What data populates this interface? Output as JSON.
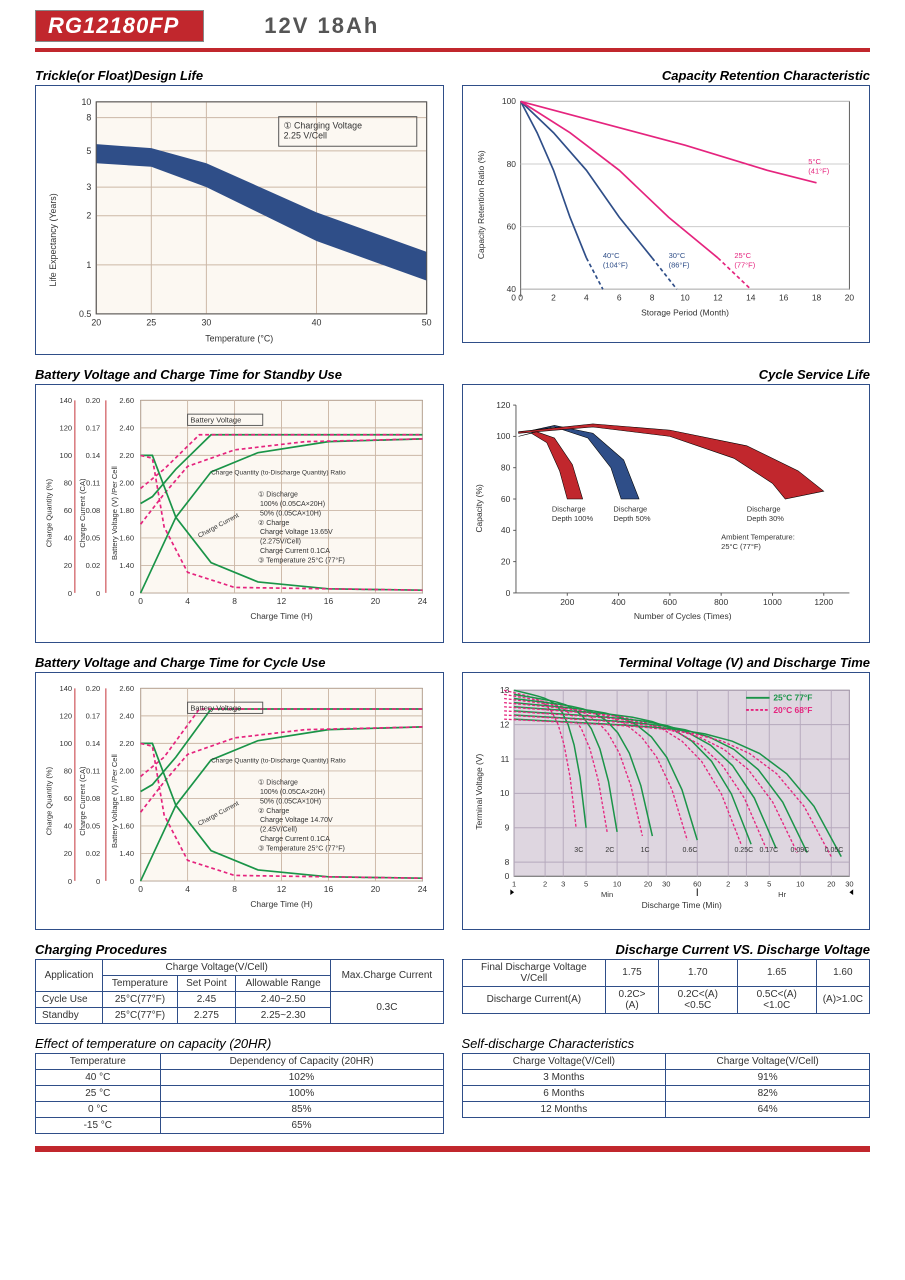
{
  "header": {
    "model": "RG12180FP",
    "rating": "12V  18Ah"
  },
  "charts": {
    "trickle": {
      "title": "Trickle(or Float)Design Life",
      "xlabel": "Temperature (°C)",
      "ylabel": "Life  Expectancy (Years)",
      "xticks": [
        20,
        25,
        30,
        40,
        50
      ],
      "yticks": [
        "0.5",
        "1",
        "2",
        "3",
        "5",
        "8",
        "10"
      ],
      "ytick_vals": [
        0.5,
        1,
        2,
        3,
        5,
        8,
        10
      ],
      "legend": "① Charging Voltage\n2.25 V/Cell",
      "band_top": [
        [
          20,
          5.5
        ],
        [
          25,
          5.2
        ],
        [
          30,
          4.2
        ],
        [
          40,
          2.1
        ],
        [
          50,
          1.2
        ]
      ],
      "band_bot": [
        [
          20,
          4.2
        ],
        [
          25,
          4.0
        ],
        [
          30,
          3.0
        ],
        [
          40,
          1.4
        ],
        [
          50,
          0.8
        ]
      ],
      "band_color": "#2f4e88",
      "grid_color": "#cbb7a6",
      "bg_color": "#fcf8f2"
    },
    "retention": {
      "title": "Capacity Retention Characteristic",
      "xlabel": "Storage Period (Month)",
      "ylabel": "Capacity Retention Ratio (%)",
      "xticks": [
        0,
        2,
        4,
        6,
        8,
        10,
        12,
        14,
        16,
        18,
        20
      ],
      "yticks": [
        40,
        60,
        80,
        100
      ],
      "series": {
        "40C": {
          "color": "#2f4e88",
          "dash": false,
          "pts": [
            [
              0,
              100
            ],
            [
              1,
              90
            ],
            [
              2,
              78
            ],
            [
              3,
              63
            ],
            [
              4,
              50
            ]
          ],
          "dashpts": [
            [
              4,
              50
            ],
            [
              5,
              40
            ]
          ],
          "label": "40°C\n(104°F)",
          "lx": 5,
          "ly": 50
        },
        "30C": {
          "color": "#2f4e88",
          "dash": false,
          "pts": [
            [
              0,
              100
            ],
            [
              2,
              90
            ],
            [
              4,
              78
            ],
            [
              6,
              63
            ],
            [
              8,
              50
            ]
          ],
          "dashpts": [
            [
              8,
              50
            ],
            [
              9.5,
              40
            ]
          ],
          "label": "30°C\n(86°F)",
          "lx": 9,
          "ly": 50
        },
        "25C": {
          "color": "#e5247e",
          "dash": false,
          "pts": [
            [
              0,
              100
            ],
            [
              3,
              90
            ],
            [
              6,
              78
            ],
            [
              9,
              63
            ],
            [
              12,
              50
            ]
          ],
          "dashpts": [
            [
              12,
              50
            ],
            [
              14,
              40
            ]
          ],
          "label": "25°C\n(77°F)",
          "lx": 13,
          "ly": 50
        },
        "5C": {
          "color": "#e5247e",
          "dash": false,
          "pts": [
            [
              0,
              100
            ],
            [
              5,
              93
            ],
            [
              10,
              86
            ],
            [
              15,
              78
            ],
            [
              18,
              74
            ]
          ],
          "dashpts": [],
          "label": "5°C\n(41°F)",
          "lx": 17.5,
          "ly": 80
        }
      },
      "grid_color": "#cccccc"
    },
    "standby": {
      "title": "Battery Voltage and Charge Time for Standby Use",
      "xlabel": "Charge Time (H)",
      "ylabel1": "Charge Quantity (%)",
      "ylabel2": "Charge Current (CA)",
      "ylabel3": "Battery Voltage (V) /Per Cell",
      "xticks": [
        0,
        4,
        8,
        12,
        16,
        20,
        24
      ],
      "y1ticks": [
        0,
        20,
        40,
        60,
        80,
        100,
        120,
        140
      ],
      "y2ticks": [
        "0",
        "0.02",
        "0.05",
        "0.08",
        "0.11",
        "0.14",
        "0.17",
        "0.20"
      ],
      "y3ticks": [
        "0",
        "1.40",
        "1.60",
        "1.80",
        "2.00",
        "2.20",
        "2.40",
        "2.60"
      ],
      "note": "① Discharge\n   100% (0.05CA×20H)\n   50% (0.05CA×10H)\n② Charge\n   Charge Voltage 13.65V\n   (2.275V/Cell)\n   Charge Current 0.1CA\n③ Temperature 25°C (77°F)",
      "label_bv": "Battery Voltage",
      "label_cq": "Charge Quantity (to-Discharge Quantity) Ratio",
      "label_cc": "Charge Current",
      "bg_color": "#fcf8f2",
      "grid_color": "#cbb7a6",
      "solid_color": "#1a9448",
      "dash_color": "#e5247e"
    },
    "cycle_life": {
      "title": "Cycle Service Life",
      "xlabel": "Number of Cycles (Times)",
      "ylabel": "Capacity (%)",
      "xticks": [
        200,
        400,
        600,
        800,
        1000,
        1200
      ],
      "yticks": [
        0,
        20,
        40,
        60,
        80,
        100,
        120
      ],
      "labels": {
        "d100": "Discharge\nDepth 100%",
        "d50": "Discharge\nDepth 50%",
        "d30": "Discharge\nDepth 30%",
        "amb": "Ambient Temperature:\n25°C (77°F)"
      },
      "grid_color": "#cccccc",
      "colors": {
        "d100": "#c1272d",
        "d50": "#2f4e88",
        "d30": "#c1272d"
      }
    },
    "cycle_use": {
      "title": "Battery Voltage and Charge Time for Cycle Use",
      "xlabel": "Charge Time (H)",
      "ylabel1": "Charge Quantity (%)",
      "ylabel2": "Charge Current (CA)",
      "ylabel3": "Battery Voltage (V) /Per Cell",
      "xticks": [
        0,
        4,
        8,
        12,
        16,
        20,
        24
      ],
      "y1ticks": [
        0,
        20,
        40,
        60,
        80,
        100,
        120,
        140
      ],
      "y2ticks": [
        "0",
        "0.02",
        "0.05",
        "0.08",
        "0.11",
        "0.14",
        "0.17",
        "0.20"
      ],
      "y3ticks": [
        "0",
        "1.40",
        "1.60",
        "1.80",
        "2.00",
        "2.20",
        "2.40",
        "2.60"
      ],
      "note": "① Discharge\n   100% (0.05CA×20H)\n   50% (0.05CA×10H)\n② Charge\n   Charge Voltage 14.70V\n   (2.45V/Cell)\n   Charge Current 0.1CA\n③ Temperature 25°C (77°F)",
      "label_bv": "Battery Voltage",
      "label_cq": "Charge Quantity (to-Discharge Quantity) Ratio",
      "label_cc": "Charge Current",
      "bg_color": "#fcf8f2",
      "grid_color": "#cbb7a6",
      "solid_color": "#1a9448",
      "dash_color": "#e5247e"
    },
    "discharge": {
      "title": "Terminal Voltage (V) and Discharge Time",
      "xlabel": "Discharge Time (Min)",
      "ylabel": "Terminal Voltage (V)",
      "yticks": [
        0,
        8,
        9,
        10,
        11,
        12,
        13
      ],
      "xticks_min": [
        "1",
        "2",
        "3",
        "5",
        "10",
        "20",
        "30",
        "60"
      ],
      "xticks_hr": [
        "2",
        "3",
        "5",
        "10",
        "20",
        "30"
      ],
      "min_label": "Min",
      "hr_label": "Hr",
      "legend25": "25°C 77°F",
      "legend20": "20°C 68°F",
      "c25_color": "#1a9448",
      "c20_color": "#e5247e",
      "rates": [
        "3C",
        "2C",
        "1C",
        "0.6C",
        "0.25C",
        "0.17C",
        "0.09C",
        "0.05C"
      ],
      "bg_color": "#ded6e0",
      "grid_color": "#b5a8bc"
    }
  },
  "tables": {
    "charging": {
      "title": "Charging Procedures",
      "hdr": {
        "app": "Application",
        "cv": "Charge Voltage(V/Cell)",
        "temp": "Temperature",
        "set": "Set Point",
        "range": "Allowable Range",
        "max": "Max.Charge Current"
      },
      "rows": [
        {
          "app": "Cycle Use",
          "temp": "25°C(77°F)",
          "set": "2.45",
          "range": "2.40~2.50"
        },
        {
          "app": "Standby",
          "temp": "25°C(77°F)",
          "set": "2.275",
          "range": "2.25~2.30"
        }
      ],
      "max": "0.3C"
    },
    "discharge_table": {
      "title": "Discharge Current VS. Discharge Voltage",
      "hdr1": "Final Discharge Voltage V/Cell",
      "hdr2": "Discharge Current(A)",
      "vcells": [
        "1.75",
        "1.70",
        "1.65",
        "1.60"
      ],
      "amps": [
        "0.2C>(A)",
        "0.2C<(A)<0.5C",
        "0.5C<(A)<1.0C",
        "(A)>1.0C"
      ]
    },
    "temp_effect": {
      "title": "Effect of temperature on capacity (20HR)",
      "hdr": {
        "t": "Temperature",
        "d": "Dependency of Capacity (20HR)"
      },
      "rows": [
        [
          "40 °C",
          "102%"
        ],
        [
          "25 °C",
          "100%"
        ],
        [
          "0 °C",
          "85%"
        ],
        [
          "-15 °C",
          "65%"
        ]
      ]
    },
    "self_discharge": {
      "title": "Self-discharge Characteristics",
      "hdr": {
        "a": "Charge Voltage(V/Cell)",
        "b": "Charge Voltage(V/Cell)"
      },
      "rows": [
        [
          "3 Months",
          "91%"
        ],
        [
          "6 Months",
          "82%"
        ],
        [
          "12 Months",
          "64%"
        ]
      ]
    }
  }
}
